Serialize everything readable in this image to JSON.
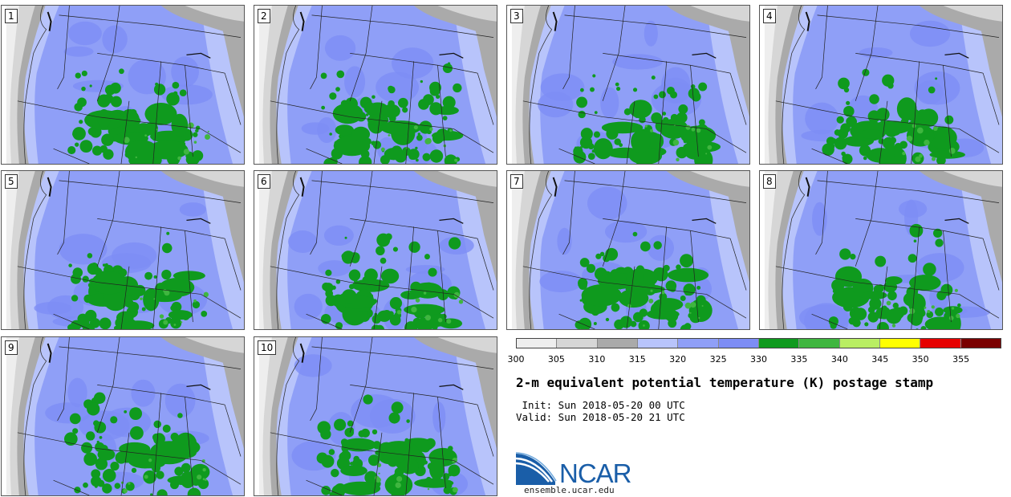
{
  "panels": [
    {
      "label": "1"
    },
    {
      "label": "2"
    },
    {
      "label": "3"
    },
    {
      "label": "4"
    },
    {
      "label": "5"
    },
    {
      "label": "6"
    },
    {
      "label": "7"
    },
    {
      "label": "8"
    },
    {
      "label": "9"
    },
    {
      "label": "10"
    }
  ],
  "legend": {
    "ticks": [
      "300",
      "305",
      "310",
      "315",
      "320",
      "325",
      "330",
      "335",
      "340",
      "345",
      "350",
      "355"
    ],
    "colors": [
      "#eeeeee",
      "#d6d6d6",
      "#aaaaaa",
      "#b8c4fb",
      "#8f9ff7",
      "#7d8df5",
      "#0f9a1e",
      "#3fb63f",
      "#b9ee63",
      "#ffff00",
      "#e60000",
      "#7a0000"
    ]
  },
  "title": "2-m equivalent potential temperature (K) postage stamp",
  "init_line": " Init: Sun 2018-05-20 00 UTC",
  "valid_line": "Valid: Sun 2018-05-20 21 UTC",
  "logo": {
    "text": "NCAR",
    "url": "ensemble.ucar.edu"
  }
}
